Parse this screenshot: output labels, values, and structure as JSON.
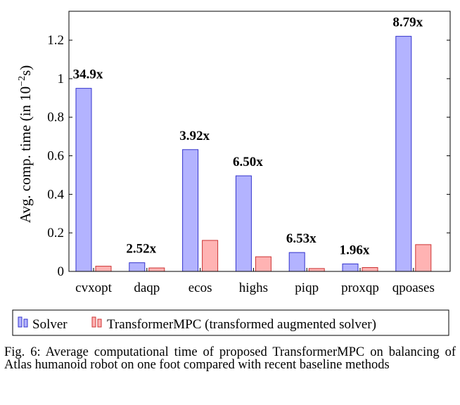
{
  "chart_data": {
    "type": "bar",
    "categories": [
      "cvxopt",
      "daqp",
      "ecos",
      "highs",
      "piqp",
      "proxqp",
      "qpoases"
    ],
    "series": [
      {
        "name": "Solver",
        "values": [
          0.95,
          0.045,
          0.632,
          0.496,
          0.098,
          0.039,
          1.22
        ],
        "color": "#b3b3ff",
        "stroke": "#3333cc"
      },
      {
        "name": "TransformerMPC (transformed augmented solver)",
        "values": [
          0.027,
          0.018,
          0.161,
          0.076,
          0.015,
          0.02,
          0.139
        ],
        "color": "#ffb3b3",
        "stroke": "#cc3333"
      }
    ],
    "data_labels": [
      "34.9x",
      "2.52x",
      "3.92x",
      "6.50x",
      "6.53x",
      "1.96x",
      "8.79x"
    ],
    "ylabel": "Avg. comp. time (in 10−2s)",
    "ylabel_parts": {
      "main": "Avg. comp. time (in 10",
      "sup": "−2",
      "tail": "s)"
    },
    "ylim": [
      0,
      1.35
    ],
    "yticks": [
      0,
      0.2,
      0.4,
      0.6,
      0.8,
      1,
      1.2
    ],
    "ytick_labels": [
      "0",
      "0.2",
      "0.4",
      "0.6",
      "0.8",
      "1",
      "1.2"
    ],
    "grid": false,
    "legend_placement": "bottom"
  },
  "caption": "Fig. 6: Average computational time of proposed TransformerMPC on balancing of Atlas humanoid robot on one foot compared with recent baseline methods"
}
